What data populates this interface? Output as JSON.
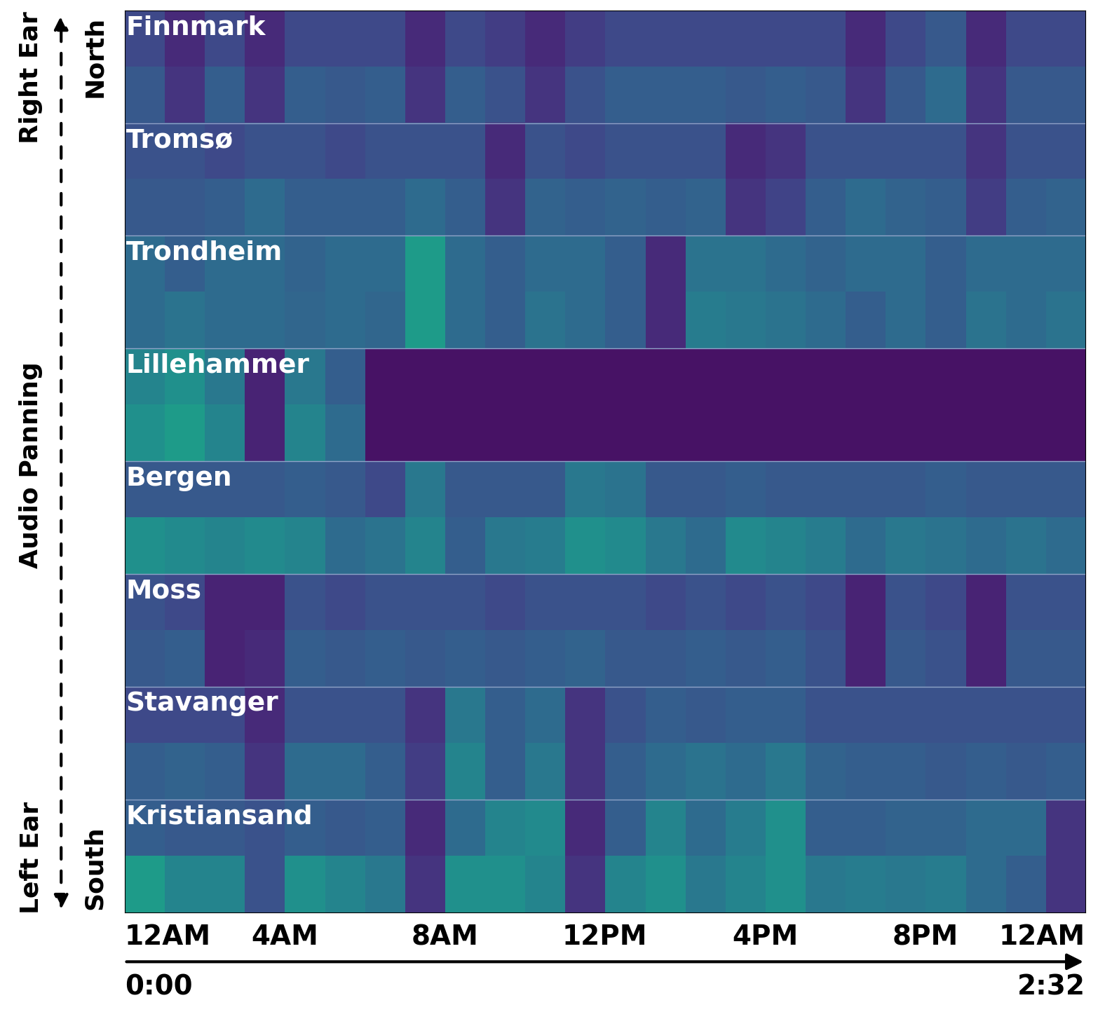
{
  "chart_data": {
    "type": "heatmap",
    "color": "viridis",
    "color_range": [
      0,
      1
    ],
    "xlim": [
      0,
      24
    ],
    "xticks": [
      {
        "value": 0,
        "label": "12AM"
      },
      {
        "value": 4,
        "label": "4AM"
      },
      {
        "value": 8,
        "label": "8AM"
      },
      {
        "value": 12,
        "label": "12PM"
      },
      {
        "value": 16,
        "label": "4PM"
      },
      {
        "value": 20,
        "label": "8PM"
      },
      {
        "value": 24,
        "label": "12AM"
      }
    ],
    "duration_ticks": [
      {
        "value": 0,
        "label": "0:00"
      },
      {
        "value": 24,
        "label": "2:32"
      }
    ],
    "side_labels": {
      "top": [
        "Right Ear",
        "North"
      ],
      "middle": "Audio Panning",
      "bottom": [
        "Left Ear",
        "South"
      ]
    },
    "rows": [
      {
        "name": "Finnmark",
        "cells": [
          [
            0.22,
            0.12,
            0.22,
            0.12,
            0.22,
            0.22,
            0.22,
            0.12,
            0.22,
            0.18,
            0.12,
            0.18,
            0.22,
            0.22,
            0.22,
            0.22,
            0.22,
            0.22,
            0.12,
            0.22,
            0.28,
            0.12,
            0.22,
            0.22
          ],
          [
            0.28,
            0.15,
            0.3,
            0.15,
            0.3,
            0.28,
            0.3,
            0.15,
            0.3,
            0.25,
            0.15,
            0.25,
            0.3,
            0.3,
            0.3,
            0.28,
            0.3,
            0.28,
            0.15,
            0.28,
            0.35,
            0.15,
            0.28,
            0.28
          ]
        ]
      },
      {
        "name": "Tromsø",
        "cells": [
          [
            0.25,
            0.25,
            0.22,
            0.25,
            0.25,
            0.22,
            0.25,
            0.25,
            0.25,
            0.12,
            0.25,
            0.22,
            0.25,
            0.25,
            0.25,
            0.12,
            0.15,
            0.25,
            0.25,
            0.25,
            0.25,
            0.15,
            0.25,
            0.25
          ],
          [
            0.28,
            0.28,
            0.3,
            0.35,
            0.3,
            0.3,
            0.3,
            0.35,
            0.3,
            0.15,
            0.32,
            0.3,
            0.32,
            0.3,
            0.32,
            0.15,
            0.2,
            0.3,
            0.35,
            0.32,
            0.3,
            0.18,
            0.3,
            0.32
          ]
        ]
      },
      {
        "name": "Trondheim",
        "cells": [
          [
            0.35,
            0.3,
            0.35,
            0.35,
            0.32,
            0.35,
            0.35,
            0.55,
            0.35,
            0.3,
            0.35,
            0.35,
            0.3,
            0.12,
            0.38,
            0.38,
            0.35,
            0.32,
            0.35,
            0.35,
            0.3,
            0.35,
            0.35,
            0.35
          ],
          [
            0.35,
            0.38,
            0.35,
            0.35,
            0.33,
            0.35,
            0.33,
            0.55,
            0.35,
            0.3,
            0.38,
            0.35,
            0.3,
            0.12,
            0.42,
            0.4,
            0.38,
            0.35,
            0.3,
            0.35,
            0.3,
            0.38,
            0.35,
            0.38
          ]
        ]
      },
      {
        "name": "Lillehammer",
        "cells": [
          [
            0.45,
            0.5,
            0.4,
            0.1,
            0.4,
            0.3,
            0.05,
            0.05,
            0.05,
            0.05,
            0.05,
            0.05,
            0.05,
            0.05,
            0.05,
            0.05,
            0.05,
            0.05,
            0.05,
            0.05,
            0.05,
            0.05,
            0.05,
            0.05
          ],
          [
            0.5,
            0.55,
            0.45,
            0.1,
            0.45,
            0.35,
            0.05,
            0.05,
            0.05,
            0.05,
            0.05,
            0.05,
            0.05,
            0.05,
            0.05,
            0.05,
            0.05,
            0.05,
            0.05,
            0.05,
            0.05,
            0.05,
            0.05,
            0.05
          ]
        ]
      },
      {
        "name": "Bergen",
        "cells": [
          [
            0.28,
            0.28,
            0.28,
            0.28,
            0.3,
            0.28,
            0.22,
            0.4,
            0.28,
            0.28,
            0.28,
            0.4,
            0.38,
            0.28,
            0.28,
            0.3,
            0.28,
            0.28,
            0.28,
            0.28,
            0.3,
            0.28,
            0.28,
            0.28
          ],
          [
            0.5,
            0.48,
            0.45,
            0.48,
            0.45,
            0.35,
            0.38,
            0.45,
            0.3,
            0.4,
            0.42,
            0.5,
            0.48,
            0.4,
            0.35,
            0.48,
            0.45,
            0.42,
            0.35,
            0.4,
            0.38,
            0.35,
            0.38,
            0.35
          ]
        ]
      },
      {
        "name": "Moss",
        "cells": [
          [
            0.25,
            0.22,
            0.1,
            0.1,
            0.25,
            0.22,
            0.25,
            0.25,
            0.25,
            0.22,
            0.25,
            0.25,
            0.25,
            0.22,
            0.25,
            0.22,
            0.25,
            0.22,
            0.1,
            0.25,
            0.22,
            0.1,
            0.25,
            0.25
          ],
          [
            0.28,
            0.3,
            0.1,
            0.12,
            0.3,
            0.28,
            0.3,
            0.28,
            0.3,
            0.28,
            0.3,
            0.32,
            0.28,
            0.28,
            0.3,
            0.28,
            0.3,
            0.25,
            0.1,
            0.28,
            0.25,
            0.1,
            0.28,
            0.28
          ]
        ]
      },
      {
        "name": "Stavanger",
        "cells": [
          [
            0.22,
            0.22,
            0.22,
            0.12,
            0.25,
            0.25,
            0.25,
            0.15,
            0.4,
            0.3,
            0.35,
            0.15,
            0.25,
            0.3,
            0.28,
            0.3,
            0.3,
            0.25,
            0.25,
            0.25,
            0.25,
            0.25,
            0.25,
            0.25
          ],
          [
            0.3,
            0.32,
            0.3,
            0.15,
            0.35,
            0.35,
            0.3,
            0.18,
            0.45,
            0.3,
            0.4,
            0.15,
            0.3,
            0.35,
            0.38,
            0.35,
            0.4,
            0.32,
            0.3,
            0.3,
            0.28,
            0.3,
            0.28,
            0.3
          ]
        ]
      },
      {
        "name": "Kristiansand",
        "cells": [
          [
            0.3,
            0.28,
            0.28,
            0.25,
            0.3,
            0.28,
            0.3,
            0.12,
            0.35,
            0.45,
            0.48,
            0.12,
            0.3,
            0.45,
            0.35,
            0.42,
            0.5,
            0.3,
            0.3,
            0.32,
            0.32,
            0.35,
            0.35,
            0.15
          ],
          [
            0.55,
            0.45,
            0.45,
            0.25,
            0.5,
            0.45,
            0.4,
            0.15,
            0.5,
            0.5,
            0.45,
            0.15,
            0.45,
            0.5,
            0.4,
            0.45,
            0.5,
            0.4,
            0.42,
            0.4,
            0.42,
            0.35,
            0.3,
            0.15
          ]
        ]
      }
    ]
  }
}
